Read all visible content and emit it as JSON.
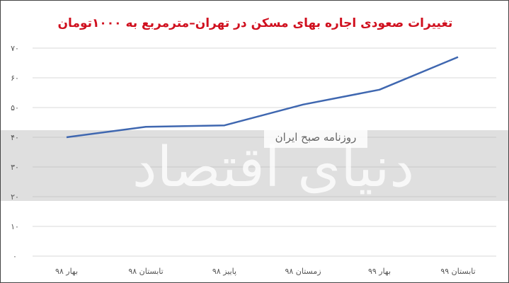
{
  "title": "تغییرات صعودی اجاره بهای مسکن در تهران–مترمربع به ۱۰۰۰تومان",
  "watermark": {
    "brand": "دنیای اقتصاد",
    "tag": "روزنامه صبح ایران"
  },
  "colors": {
    "title": "#d0101f",
    "line": "#3f67b0",
    "grid": "#d9d9d9",
    "band": "#b8b8b8"
  },
  "chart_data": {
    "type": "line",
    "categories": [
      "بهار ۹۸",
      "تابستان ۹۸",
      "پاییز ۹۸",
      "زمستان ۹۸",
      "بهار ۹۹",
      "تابستان ۹۹"
    ],
    "series": [
      {
        "values": [
          40,
          43.5,
          44,
          51,
          56,
          67
        ]
      }
    ],
    "yticks": [
      "۰",
      "۱۰",
      "۲۰",
      "۳۰",
      "۴۰",
      "۵۰",
      "۶۰",
      "۷۰"
    ],
    "ylim": [
      0,
      70
    ],
    "grid": true,
    "title": "تغییرات صعودی اجاره بهای مسکن در تهران–مترمربع به ۱۰۰۰تومان"
  }
}
